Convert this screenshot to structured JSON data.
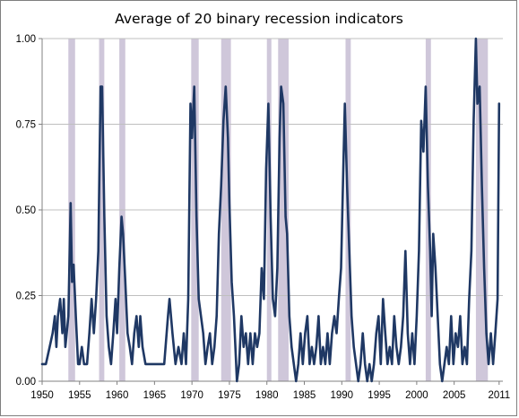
{
  "chart_data": {
    "type": "line",
    "title": "Average of 20 binary recession indicators",
    "xlabel": "",
    "ylabel": "",
    "xlim": [
      1950,
      2011.5
    ],
    "ylim": [
      0,
      1
    ],
    "grid": true,
    "legend": "none",
    "x_ticks": [
      1950,
      1955,
      1960,
      1965,
      1970,
      1975,
      1980,
      1985,
      1990,
      1995,
      2000,
      2005,
      2011
    ],
    "y_ticks": [
      0,
      0.25,
      0.5,
      0.75,
      1
    ],
    "y_tick_labels": [
      "0.00",
      "0.25",
      "0.50",
      "0.75",
      "1.00"
    ],
    "x_tick_labels": [
      "1950",
      "1955",
      "1960",
      "1965",
      "1970",
      "1975",
      "1980",
      "1985",
      "1990",
      "1995",
      "2000",
      "2005",
      "2011"
    ],
    "colors": {
      "line": "#1f3864",
      "recession": "#cfc7da",
      "grid": "#bfbfbf"
    },
    "recessions": [
      [
        1953.5,
        1954.4
      ],
      [
        1957.6,
        1958.3
      ],
      [
        1960.3,
        1961.1
      ],
      [
        1969.9,
        1970.9
      ],
      [
        1973.9,
        1975.2
      ],
      [
        1980.0,
        1980.6
      ],
      [
        1981.5,
        1982.9
      ],
      [
        1990.5,
        1991.2
      ],
      [
        2001.2,
        2001.9
      ],
      [
        2007.9,
        2009.5
      ]
    ],
    "series": [
      {
        "values": [
          [
            1950.0,
            0.05
          ],
          [
            1950.5,
            0.05
          ],
          [
            1951.0,
            0.1
          ],
          [
            1951.4,
            0.14
          ],
          [
            1951.7,
            0.19
          ],
          [
            1951.9,
            0.1
          ],
          [
            1952.1,
            0.19
          ],
          [
            1952.4,
            0.24
          ],
          [
            1952.7,
            0.14
          ],
          [
            1952.9,
            0.24
          ],
          [
            1953.1,
            0.1
          ],
          [
            1953.5,
            0.19
          ],
          [
            1953.8,
            0.52
          ],
          [
            1954.0,
            0.29
          ],
          [
            1954.2,
            0.34
          ],
          [
            1954.5,
            0.19
          ],
          [
            1954.8,
            0.05
          ],
          [
            1955.0,
            0.05
          ],
          [
            1955.3,
            0.1
          ],
          [
            1955.6,
            0.05
          ],
          [
            1956.0,
            0.05
          ],
          [
            1956.3,
            0.14
          ],
          [
            1956.6,
            0.24
          ],
          [
            1956.9,
            0.14
          ],
          [
            1957.2,
            0.24
          ],
          [
            1957.5,
            0.38
          ],
          [
            1957.8,
            0.86
          ],
          [
            1958.0,
            0.86
          ],
          [
            1958.3,
            0.48
          ],
          [
            1958.6,
            0.19
          ],
          [
            1958.9,
            0.1
          ],
          [
            1959.2,
            0.05
          ],
          [
            1959.5,
            0.14
          ],
          [
            1959.8,
            0.24
          ],
          [
            1960.0,
            0.14
          ],
          [
            1960.3,
            0.33
          ],
          [
            1960.6,
            0.48
          ],
          [
            1960.8,
            0.43
          ],
          [
            1961.1,
            0.29
          ],
          [
            1961.4,
            0.14
          ],
          [
            1961.7,
            0.1
          ],
          [
            1962.0,
            0.05
          ],
          [
            1962.3,
            0.14
          ],
          [
            1962.6,
            0.19
          ],
          [
            1962.9,
            0.1
          ],
          [
            1963.1,
            0.19
          ],
          [
            1963.4,
            0.1
          ],
          [
            1963.8,
            0.05
          ],
          [
            1964.5,
            0.05
          ],
          [
            1965.5,
            0.05
          ],
          [
            1966.3,
            0.05
          ],
          [
            1966.8,
            0.19
          ],
          [
            1967.0,
            0.24
          ],
          [
            1967.4,
            0.14
          ],
          [
            1967.8,
            0.05
          ],
          [
            1968.2,
            0.1
          ],
          [
            1968.6,
            0.05
          ],
          [
            1968.9,
            0.14
          ],
          [
            1969.2,
            0.05
          ],
          [
            1969.5,
            0.24
          ],
          [
            1969.8,
            0.81
          ],
          [
            1970.0,
            0.71
          ],
          [
            1970.3,
            0.86
          ],
          [
            1970.6,
            0.48
          ],
          [
            1970.9,
            0.24
          ],
          [
            1971.2,
            0.19
          ],
          [
            1971.5,
            0.14
          ],
          [
            1971.8,
            0.05
          ],
          [
            1972.1,
            0.1
          ],
          [
            1972.4,
            0.14
          ],
          [
            1972.7,
            0.05
          ],
          [
            1973.0,
            0.1
          ],
          [
            1973.3,
            0.19
          ],
          [
            1973.6,
            0.43
          ],
          [
            1973.9,
            0.57
          ],
          [
            1974.2,
            0.76
          ],
          [
            1974.5,
            0.86
          ],
          [
            1974.8,
            0.71
          ],
          [
            1975.0,
            0.52
          ],
          [
            1975.3,
            0.29
          ],
          [
            1975.6,
            0.19
          ],
          [
            1975.8,
            0.1
          ],
          [
            1976.0,
            0.0
          ],
          [
            1976.3,
            0.05
          ],
          [
            1976.6,
            0.19
          ],
          [
            1976.9,
            0.1
          ],
          [
            1977.2,
            0.14
          ],
          [
            1977.5,
            0.05
          ],
          [
            1977.8,
            0.14
          ],
          [
            1978.1,
            0.05
          ],
          [
            1978.4,
            0.14
          ],
          [
            1978.7,
            0.1
          ],
          [
            1979.0,
            0.14
          ],
          [
            1979.3,
            0.33
          ],
          [
            1979.6,
            0.24
          ],
          [
            1979.9,
            0.62
          ],
          [
            1980.2,
            0.81
          ],
          [
            1980.5,
            0.48
          ],
          [
            1980.8,
            0.24
          ],
          [
            1981.1,
            0.19
          ],
          [
            1981.4,
            0.33
          ],
          [
            1981.7,
            0.71
          ],
          [
            1981.9,
            0.86
          ],
          [
            1982.2,
            0.81
          ],
          [
            1982.5,
            0.48
          ],
          [
            1982.7,
            0.43
          ],
          [
            1983.0,
            0.19
          ],
          [
            1983.3,
            0.1
          ],
          [
            1983.6,
            0.05
          ],
          [
            1983.9,
            0.0
          ],
          [
            1984.2,
            0.05
          ],
          [
            1984.5,
            0.14
          ],
          [
            1984.8,
            0.05
          ],
          [
            1985.1,
            0.14
          ],
          [
            1985.4,
            0.19
          ],
          [
            1985.7,
            0.05
          ],
          [
            1986.0,
            0.1
          ],
          [
            1986.3,
            0.05
          ],
          [
            1986.6,
            0.1
          ],
          [
            1986.9,
            0.19
          ],
          [
            1987.2,
            0.05
          ],
          [
            1987.5,
            0.1
          ],
          [
            1987.8,
            0.05
          ],
          [
            1988.1,
            0.14
          ],
          [
            1988.4,
            0.05
          ],
          [
            1988.7,
            0.14
          ],
          [
            1989.0,
            0.19
          ],
          [
            1989.3,
            0.14
          ],
          [
            1989.6,
            0.24
          ],
          [
            1989.9,
            0.33
          ],
          [
            1990.2,
            0.62
          ],
          [
            1990.4,
            0.81
          ],
          [
            1990.7,
            0.57
          ],
          [
            1991.0,
            0.38
          ],
          [
            1991.3,
            0.19
          ],
          [
            1991.6,
            0.1
          ],
          [
            1991.9,
            0.05
          ],
          [
            1992.2,
            0.0
          ],
          [
            1992.5,
            0.05
          ],
          [
            1992.8,
            0.14
          ],
          [
            1993.1,
            0.05
          ],
          [
            1993.4,
            0.0
          ],
          [
            1993.7,
            0.05
          ],
          [
            1994.0,
            0.0
          ],
          [
            1994.3,
            0.05
          ],
          [
            1994.6,
            0.14
          ],
          [
            1994.9,
            0.19
          ],
          [
            1995.2,
            0.05
          ],
          [
            1995.5,
            0.24
          ],
          [
            1995.8,
            0.14
          ],
          [
            1996.1,
            0.05
          ],
          [
            1996.4,
            0.1
          ],
          [
            1996.7,
            0.05
          ],
          [
            1997.0,
            0.19
          ],
          [
            1997.3,
            0.1
          ],
          [
            1997.6,
            0.05
          ],
          [
            1997.9,
            0.1
          ],
          [
            1998.2,
            0.19
          ],
          [
            1998.5,
            0.38
          ],
          [
            1998.8,
            0.14
          ],
          [
            1999.1,
            0.05
          ],
          [
            1999.4,
            0.14
          ],
          [
            1999.7,
            0.05
          ],
          [
            2000.0,
            0.19
          ],
          [
            2000.3,
            0.38
          ],
          [
            2000.6,
            0.76
          ],
          [
            2000.9,
            0.67
          ],
          [
            2001.2,
            0.86
          ],
          [
            2001.5,
            0.57
          ],
          [
            2001.8,
            0.38
          ],
          [
            2002.0,
            0.19
          ],
          [
            2002.2,
            0.43
          ],
          [
            2002.5,
            0.33
          ],
          [
            2002.8,
            0.19
          ],
          [
            2003.1,
            0.05
          ],
          [
            2003.4,
            0.0
          ],
          [
            2003.7,
            0.05
          ],
          [
            2004.0,
            0.1
          ],
          [
            2004.3,
            0.05
          ],
          [
            2004.6,
            0.19
          ],
          [
            2004.9,
            0.05
          ],
          [
            2005.2,
            0.14
          ],
          [
            2005.5,
            0.1
          ],
          [
            2005.8,
            0.19
          ],
          [
            2006.1,
            0.05
          ],
          [
            2006.4,
            0.1
          ],
          [
            2006.7,
            0.05
          ],
          [
            2007.0,
            0.24
          ],
          [
            2007.3,
            0.38
          ],
          [
            2007.6,
            0.76
          ],
          [
            2007.9,
            1.0
          ],
          [
            2008.1,
            0.81
          ],
          [
            2008.4,
            0.86
          ],
          [
            2008.7,
            0.57
          ],
          [
            2009.0,
            0.33
          ],
          [
            2009.3,
            0.14
          ],
          [
            2009.6,
            0.05
          ],
          [
            2009.9,
            0.14
          ],
          [
            2010.2,
            0.05
          ],
          [
            2010.5,
            0.14
          ],
          [
            2010.8,
            0.24
          ],
          [
            2011.0,
            0.81
          ]
        ]
      }
    ]
  }
}
